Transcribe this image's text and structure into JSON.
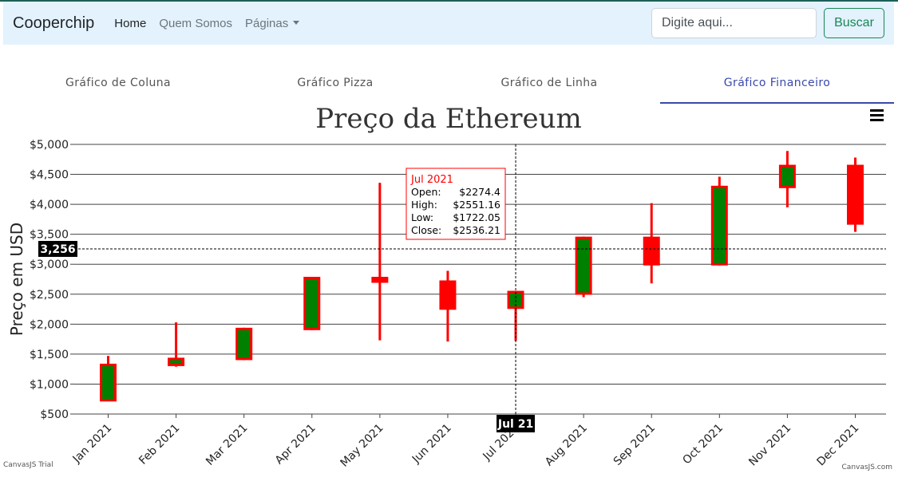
{
  "navbar": {
    "brand": "Cooperchip",
    "links": [
      "Home",
      "Quem Somos",
      "Páginas"
    ],
    "search_placeholder": "Digite aqui...",
    "search_button": "Buscar"
  },
  "tabs": [
    "Gráfico de Coluna",
    "Gráfico Pizza",
    "Gráfico de Linha",
    "Gráfico Financeiro"
  ],
  "active_tab": 3,
  "colors": {
    "rising": "#008000",
    "border": "#ff0000",
    "accent": "#3949ab",
    "buscar": "#198754"
  },
  "chart_data": {
    "type": "candlestick",
    "title": "Preço da Ethereum",
    "ylabel": "Preço em USD",
    "xlabel": "",
    "ylim": [
      500,
      5000
    ],
    "yticks": [
      500,
      1000,
      1500,
      2000,
      2500,
      3000,
      3500,
      4000,
      4500,
      5000
    ],
    "ytick_labels": [
      "$500",
      "$1,000",
      "$1,500",
      "$2,000",
      "$2,500",
      "$3,000",
      "$3,500",
      "$4,000",
      "$4,500",
      "$5,000"
    ],
    "grid": true,
    "categories": [
      "Jan 2021",
      "Feb 2021",
      "Mar 2021",
      "Apr 2021",
      "May 2021",
      "Jun 2021",
      "Jul 2021",
      "Aug 2021",
      "Sep 2021",
      "Oct 2021",
      "Nov 2021",
      "Dec 2021"
    ],
    "ohlc": [
      {
        "open": 730,
        "high": 1470,
        "low": 720,
        "close": 1320
      },
      {
        "open": 1320,
        "high": 2030,
        "low": 1290,
        "close": 1420
      },
      {
        "open": 1420,
        "high": 1940,
        "low": 1400,
        "close": 1920
      },
      {
        "open": 1920,
        "high": 2790,
        "low": 1900,
        "close": 2770
      },
      {
        "open": 2770,
        "high": 4360,
        "low": 1730,
        "close": 2710
      },
      {
        "open": 2710,
        "high": 2890,
        "low": 1710,
        "close": 2260
      },
      {
        "open": 2274.4,
        "high": 2551.16,
        "low": 1722.05,
        "close": 2536.21
      },
      {
        "open": 2510,
        "high": 3460,
        "low": 2450,
        "close": 3440
      },
      {
        "open": 3440,
        "high": 4020,
        "low": 2680,
        "close": 3000
      },
      {
        "open": 3000,
        "high": 4460,
        "low": 2980,
        "close": 4290
      },
      {
        "open": 4290,
        "high": 4890,
        "low": 3950,
        "close": 4640
      },
      {
        "open": 4640,
        "high": 4780,
        "low": 3540,
        "close": 3680
      }
    ],
    "tooltip": {
      "title": "Jul 2021",
      "rows": [
        {
          "label": "Open:",
          "value": "$2274.4"
        },
        {
          "label": "High:",
          "value": "$2551.16"
        },
        {
          "label": "Low:",
          "value": "$1722.05"
        },
        {
          "label": "Close:",
          "value": "$2536.21"
        }
      ]
    },
    "crosshair_y_value": 3256,
    "crosshair_y_label": "3,256",
    "crosshair_x_label": "Jul 21",
    "crosshair_x_index": 6,
    "credit_left": "CanvasJS Trial",
    "credit_right": "CanvasJS.com",
    "menu_icon": "hamburger-menu-icon"
  }
}
